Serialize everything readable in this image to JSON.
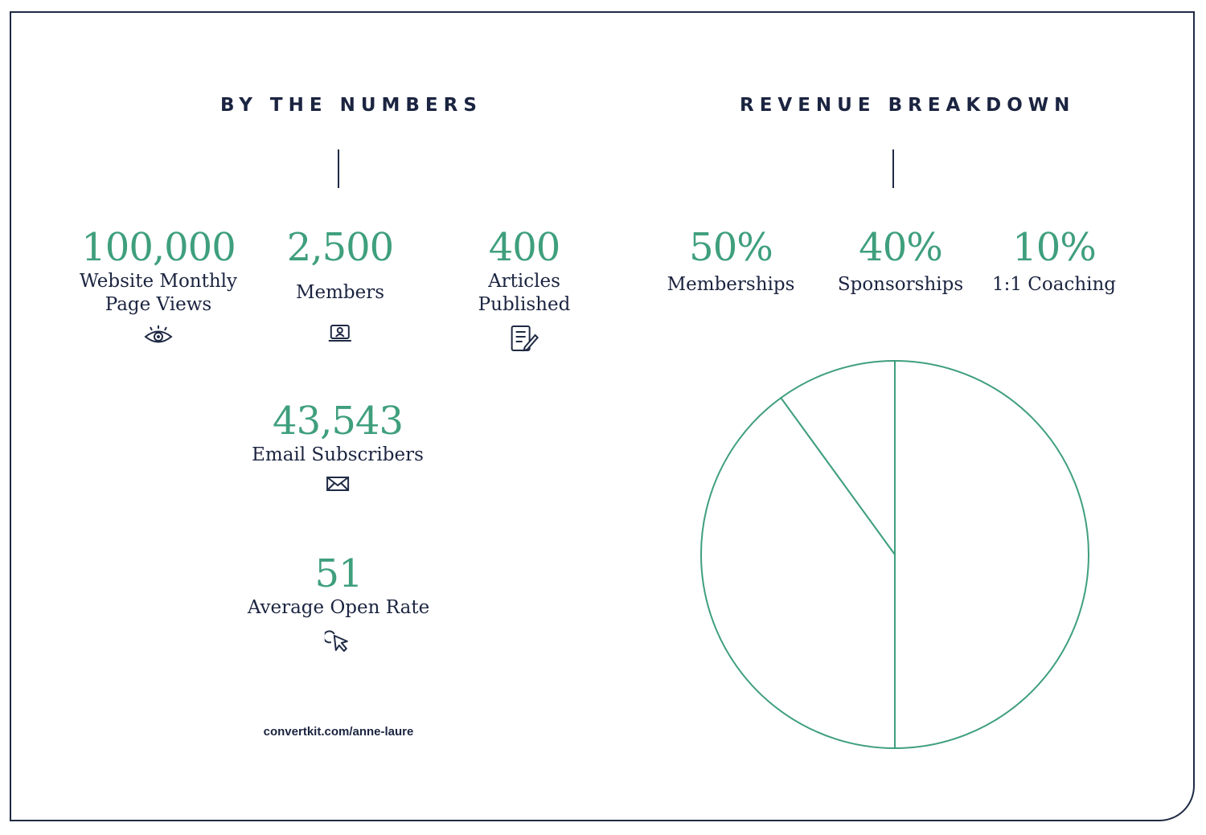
{
  "left_title": "BY THE NUMBERS",
  "right_title": "REVENUE BREAKDOWN",
  "stats": {
    "page_views": {
      "value": "100,000",
      "label": "Website Monthly\nPage Views",
      "icon": "eye-icon"
    },
    "members": {
      "value": "2,500",
      "label": "Members",
      "icon": "laptop-user-icon"
    },
    "articles": {
      "value": "400",
      "label": "Articles\nPublished",
      "icon": "document-pen-icon"
    },
    "subscribers": {
      "value": "43,543",
      "label": "Email Subscribers",
      "icon": "envelope-icon"
    },
    "open_rate": {
      "value": "51",
      "label": "Average Open Rate",
      "icon": "cursor-click-icon"
    }
  },
  "footer_url": "convertkit.com/anne-laure",
  "colors": {
    "accent": "#3f9f7d",
    "text": "#1b2440",
    "border": "#1f2a44"
  },
  "chart_data": {
    "type": "pie",
    "title": "REVENUE BREAKDOWN",
    "categories": [
      "Memberships",
      "Sponsorships",
      "1:1 Coaching"
    ],
    "values": [
      50,
      40,
      10
    ],
    "value_labels": [
      "50%",
      "40%",
      "10%"
    ],
    "unit": "%"
  }
}
